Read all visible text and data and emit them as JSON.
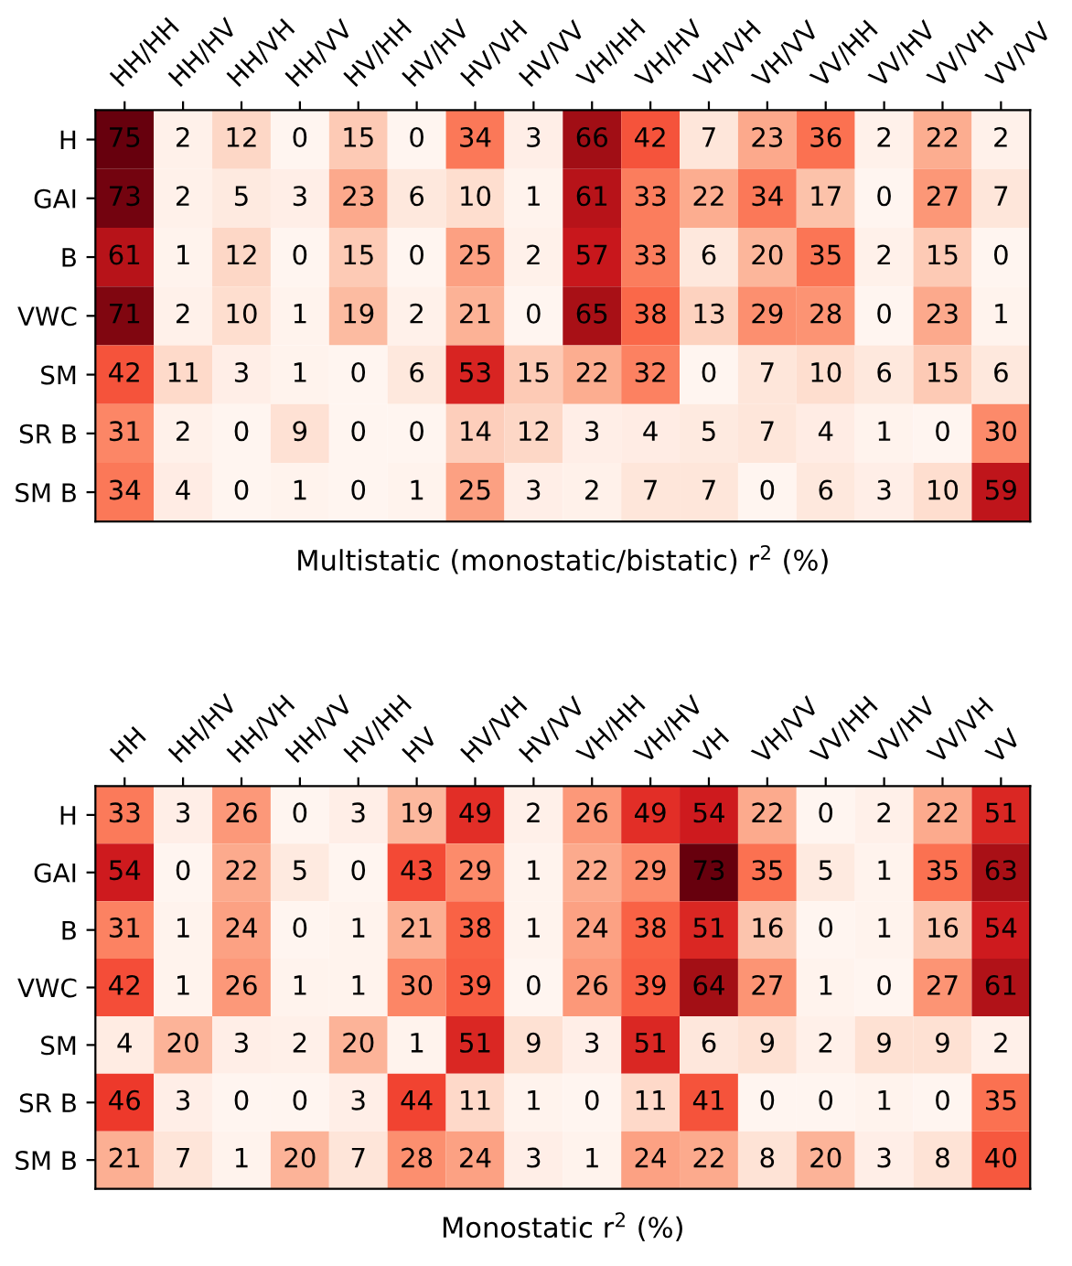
{
  "chart_data": [
    {
      "type": "heatmap",
      "xlabel": "Multistatic (monostatic/bistatic) r$^{2}$ (%)",
      "categories": [
        "HH/HH",
        "HH/HV",
        "HH/VH",
        "HH/VV",
        "HV/HH",
        "HV/HV",
        "HV/VH",
        "HV/VV",
        "VH/HH",
        "VH/HV",
        "VH/VH",
        "VH/VV",
        "VV/HH",
        "VV/HV",
        "VV/VH",
        "VV/VV"
      ],
      "y_categories": [
        "H",
        "GAI",
        "B",
        "VWC",
        "SM",
        "SR B",
        "SM B"
      ],
      "cells": [
        [
          75,
          2,
          12,
          0,
          15,
          0,
          34,
          3,
          66,
          42,
          7,
          23,
          36,
          2,
          22,
          2
        ],
        [
          73,
          2,
          5,
          3,
          23,
          6,
          10,
          1,
          61,
          33,
          22,
          34,
          17,
          0,
          27,
          7
        ],
        [
          61,
          1,
          12,
          0,
          15,
          0,
          25,
          2,
          57,
          33,
          6,
          20,
          35,
          2,
          15,
          0
        ],
        [
          71,
          2,
          10,
          1,
          19,
          2,
          21,
          0,
          65,
          38,
          13,
          29,
          28,
          0,
          23,
          1
        ],
        [
          42,
          11,
          3,
          1,
          0,
          6,
          53,
          15,
          22,
          32,
          0,
          7,
          10,
          6,
          15,
          6
        ],
        [
          31,
          2,
          0,
          9,
          0,
          0,
          14,
          12,
          3,
          4,
          5,
          7,
          4,
          1,
          0,
          30
        ],
        [
          34,
          4,
          0,
          1,
          0,
          1,
          25,
          3,
          2,
          7,
          7,
          0,
          6,
          3,
          10,
          59
        ]
      ],
      "data_labels": true
    },
    {
      "type": "heatmap",
      "xlabel": "Monostatic r$^{2}$ (%)",
      "categories": [
        "HH",
        "HH/HV",
        "HH/VH",
        "HH/VV",
        "HV/HH",
        "HV",
        "HV/VH",
        "HV/VV",
        "VH/HH",
        "VH/HV",
        "VH",
        "VH/VV",
        "VV/HH",
        "VV/HV",
        "VV/VH",
        "VV"
      ],
      "y_categories": [
        "H",
        "GAI",
        "B",
        "VWC",
        "SM",
        "SR B",
        "SM B"
      ],
      "cells": [
        [
          33,
          3,
          26,
          0,
          3,
          19,
          49,
          2,
          26,
          49,
          54,
          22,
          0,
          2,
          22,
          51
        ],
        [
          54,
          0,
          22,
          5,
          0,
          43,
          29,
          1,
          22,
          29,
          73,
          35,
          5,
          1,
          35,
          63
        ],
        [
          31,
          1,
          24,
          0,
          1,
          21,
          38,
          1,
          24,
          38,
          51,
          16,
          0,
          1,
          16,
          54
        ],
        [
          42,
          1,
          26,
          1,
          1,
          30,
          39,
          0,
          26,
          39,
          64,
          27,
          1,
          0,
          27,
          61
        ],
        [
          4,
          20,
          3,
          2,
          20,
          1,
          51,
          9,
          3,
          51,
          6,
          9,
          2,
          9,
          9,
          2
        ],
        [
          46,
          3,
          0,
          0,
          3,
          44,
          11,
          1,
          0,
          11,
          41,
          0,
          0,
          1,
          0,
          35
        ],
        [
          21,
          7,
          1,
          20,
          7,
          28,
          24,
          3,
          1,
          24,
          22,
          8,
          20,
          3,
          8,
          40
        ]
      ],
      "data_labels": true
    }
  ]
}
